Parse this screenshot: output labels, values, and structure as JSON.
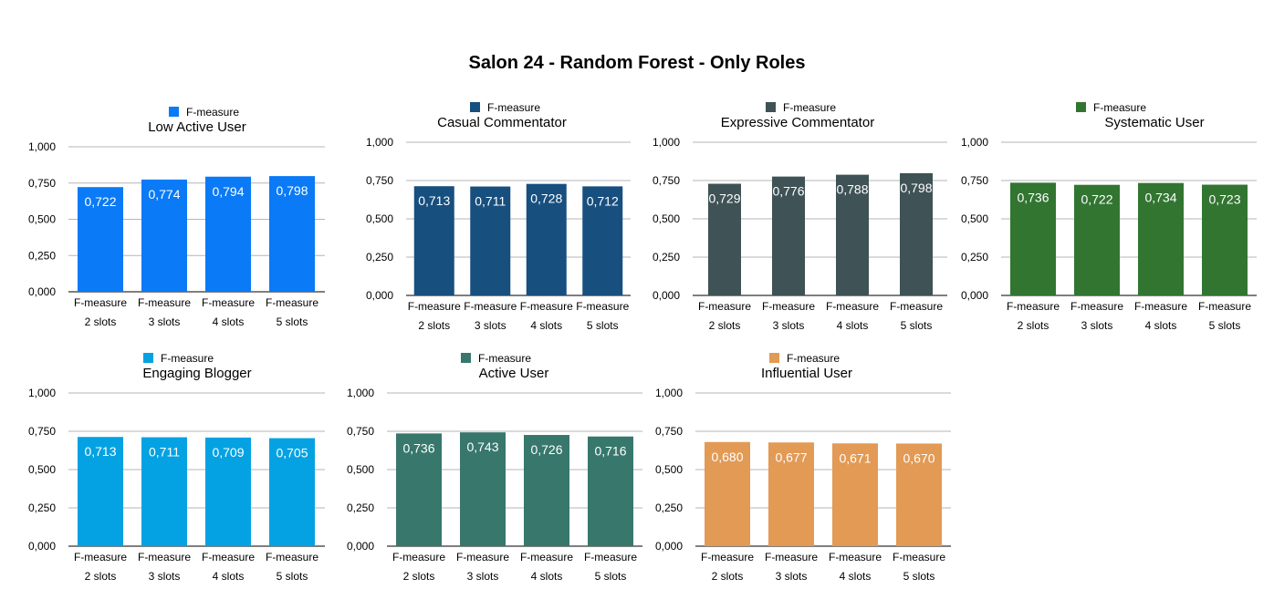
{
  "page": {
    "title": "Salon 24 - Random Forest - Only Roles"
  },
  "chart_data": [
    {
      "type": "bar",
      "title": "Low Active User",
      "legend": "F-measure",
      "color": "#0a7af6",
      "categories": [
        [
          "F-measure",
          "2 slots"
        ],
        [
          "F-measure",
          "3 slots"
        ],
        [
          "F-measure",
          "4 slots"
        ],
        [
          "F-measure",
          "5 slots"
        ]
      ],
      "values": [
        0.722,
        0.774,
        0.794,
        0.798
      ],
      "value_labels": [
        "0,722",
        "0,774",
        "0,794",
        "0,798"
      ],
      "y_ticks": [
        "0,000",
        "0,250",
        "0,500",
        "0,750",
        "1,000"
      ],
      "ylim": [
        0,
        1
      ],
      "grid": true,
      "legend_position": "top"
    },
    {
      "type": "bar",
      "title": "Casual Commentator",
      "legend": "F-measure",
      "color": "#174f7f",
      "categories": [
        [
          "F-measure",
          "2 slots"
        ],
        [
          "F-measure",
          "3 slots"
        ],
        [
          "F-measure",
          "4 slots"
        ],
        [
          "F-measure",
          "5 slots"
        ]
      ],
      "values": [
        0.713,
        0.711,
        0.728,
        0.712
      ],
      "value_labels": [
        "0,713",
        "0,711",
        "0,728",
        "0,712"
      ],
      "y_ticks": [
        "0,000",
        "0,250",
        "0,500",
        "0,750",
        "1,000"
      ],
      "ylim": [
        0,
        1
      ],
      "grid": true,
      "legend_position": "top"
    },
    {
      "type": "bar",
      "title": "Expressive Commentator",
      "legend": "F-measure",
      "color": "#3f5255",
      "categories": [
        [
          "F-measure",
          "2 slots"
        ],
        [
          "F-measure",
          "3 slots"
        ],
        [
          "F-measure",
          "4 slots"
        ],
        [
          "F-measure",
          "5 slots"
        ]
      ],
      "values": [
        0.729,
        0.776,
        0.788,
        0.798
      ],
      "value_labels": [
        "0,729",
        "0,776",
        "0,788",
        "0,798"
      ],
      "y_ticks": [
        "0,000",
        "0,250",
        "0,500",
        "0,750",
        "1,000"
      ],
      "ylim": [
        0,
        1
      ],
      "grid": true,
      "legend_position": "top"
    },
    {
      "type": "bar",
      "title": "Systematic User",
      "legend": "F-measure",
      "color": "#327531",
      "categories": [
        [
          "F-measure",
          "2 slots"
        ],
        [
          "F-measure",
          "3 slots"
        ],
        [
          "F-measure",
          "4 slots"
        ],
        [
          "F-measure",
          "5 slots"
        ]
      ],
      "values": [
        0.736,
        0.722,
        0.734,
        0.723
      ],
      "value_labels": [
        "0,736",
        "0,722",
        "0,734",
        "0,723"
      ],
      "y_ticks": [
        "0,000",
        "0,250",
        "0,500",
        "0,750",
        "1,000"
      ],
      "ylim": [
        0,
        1
      ],
      "grid": true,
      "legend_position": "top"
    },
    {
      "type": "bar",
      "title": "Engaging Blogger",
      "legend": "F-measure",
      "color": "#04a2e2",
      "categories": [
        [
          "F-measure",
          "2 slots"
        ],
        [
          "F-measure",
          "3 slots"
        ],
        [
          "F-measure",
          "4 slots"
        ],
        [
          "F-measure",
          "5 slots"
        ]
      ],
      "values": [
        0.713,
        0.711,
        0.709,
        0.705
      ],
      "value_labels": [
        "0,713",
        "0,711",
        "0,709",
        "0,705"
      ],
      "y_ticks": [
        "0,000",
        "0,250",
        "0,500",
        "0,750",
        "1,000"
      ],
      "ylim": [
        0,
        1
      ],
      "grid": true,
      "legend_position": "top"
    },
    {
      "type": "bar",
      "title": "Active User",
      "legend": "F-measure",
      "color": "#38776c",
      "categories": [
        [
          "F-measure",
          "2 slots"
        ],
        [
          "F-measure",
          "3 slots"
        ],
        [
          "F-measure",
          "4 slots"
        ],
        [
          "F-measure",
          "5 slots"
        ]
      ],
      "values": [
        0.736,
        0.743,
        0.726,
        0.716
      ],
      "value_labels": [
        "0,736",
        "0,743",
        "0,726",
        "0,716"
      ],
      "y_ticks": [
        "0,000",
        "0,250",
        "0,500",
        "0,750",
        "1,000"
      ],
      "ylim": [
        0,
        1
      ],
      "grid": true,
      "legend_position": "top"
    },
    {
      "type": "bar",
      "title": "Influential User",
      "legend": "F-measure",
      "color": "#e29a55",
      "categories": [
        [
          "F-measure",
          "2 slots"
        ],
        [
          "F-measure",
          "3 slots"
        ],
        [
          "F-measure",
          "4 slots"
        ],
        [
          "F-measure",
          "5 slots"
        ]
      ],
      "values": [
        0.68,
        0.677,
        0.671,
        0.67
      ],
      "value_labels": [
        "0,680",
        "0,677",
        "0,671",
        "0,670"
      ],
      "y_ticks": [
        "0,000",
        "0,250",
        "0,500",
        "0,750",
        "1,000"
      ],
      "ylim": [
        0,
        1
      ],
      "grid": true,
      "legend_position": "top"
    }
  ]
}
